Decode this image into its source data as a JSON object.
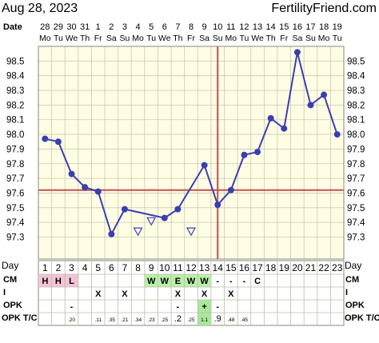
{
  "header": {
    "date": "Aug 28, 2023",
    "brand": "FertilityFriend.com"
  },
  "colors": {
    "background": "#fffde4",
    "grid": "#c8c8b4",
    "line": "#3a3fb0",
    "coverline": "#c0504d",
    "ovulation_line": "#c0504d",
    "cm_pink": "#f2c4d6",
    "cm_green": "#b9f0a8",
    "opk_green": "#a8e89a"
  },
  "chart_data": {
    "type": "line",
    "title": "",
    "xlabel": "Day",
    "ylabel": "",
    "ylim": [
      97.15,
      98.6
    ],
    "y_ticks": [
      "98.5",
      "98.4",
      "98.3",
      "98.2",
      "98.1",
      "98.0",
      "97.9",
      "97.8",
      "97.7",
      "97.6",
      "97.5",
      "97.4",
      "97.3"
    ],
    "y_tick_values": [
      98.5,
      98.4,
      98.3,
      98.2,
      98.1,
      98.0,
      97.9,
      97.8,
      97.7,
      97.6,
      97.5,
      97.4,
      97.3
    ],
    "date_label": "Date",
    "dates": [
      "28",
      "29",
      "30",
      "31",
      "1",
      "2",
      "3",
      "4",
      "5",
      "6",
      "7",
      "8",
      "9",
      "10",
      "11",
      "12",
      "13",
      "14",
      "15",
      "16",
      "17",
      "18",
      "19"
    ],
    "weekdays": [
      "Mo",
      "Tu",
      "We",
      "Th",
      "Fr",
      "Sa",
      "Su",
      "Mo",
      "Tu",
      "We",
      "Th",
      "Fr",
      "Sa",
      "Su",
      "Mo",
      "Tu",
      "We",
      "Th",
      "Fr",
      "Sa",
      "Su",
      "Mo",
      "Tu"
    ],
    "days": [
      "1",
      "2",
      "3",
      "4",
      "5",
      "6",
      "7",
      "8",
      "9",
      "10",
      "11",
      "12",
      "13",
      "14",
      "15",
      "16",
      "17",
      "18",
      "19",
      "20",
      "21",
      "22",
      "23"
    ],
    "temps": [
      97.97,
      97.95,
      97.73,
      97.64,
      97.61,
      97.32,
      97.49,
      null,
      null,
      97.43,
      97.49,
      null,
      97.79,
      97.52,
      97.62,
      97.86,
      97.88,
      98.11,
      98.04,
      98.56,
      98.2,
      98.27,
      98.0
    ],
    "discarded": [
      {
        "day": 8,
        "value": 97.34
      },
      {
        "day": 9,
        "value": 97.41
      },
      {
        "day": 12,
        "value": 97.34
      }
    ],
    "coverline": 97.62,
    "ovulation_day": 14,
    "rows": {
      "cm_label": "CM",
      "intercourse_label": "I",
      "opk_label": "OPK",
      "opktc_label": "OPK T/C",
      "cm": [
        "H",
        "H",
        "L",
        "",
        "",
        "",
        "",
        "",
        "W",
        "W",
        "E",
        "W",
        "W",
        "-",
        "-",
        "-",
        "C",
        "",
        "",
        "",
        "",
        "",
        ""
      ],
      "intercourse": [
        "",
        "",
        "",
        "",
        "X",
        "",
        "X",
        "",
        "",
        "",
        "X",
        "",
        "X",
        "",
        "X",
        "",
        "",
        "",
        "",
        "",
        "",
        "",
        ""
      ],
      "opk": [
        "",
        "",
        "-",
        "",
        "",
        "",
        "",
        "",
        "",
        "",
        "-",
        "",
        "+",
        "-",
        "",
        "",
        "",
        "",
        "",
        "",
        "",
        "",
        ""
      ],
      "opktc": [
        "",
        "",
        ".20",
        "",
        ".11",
        ".35",
        ".21",
        ".34",
        ".23",
        ".25",
        ".2",
        ".25",
        "1.1",
        ".9",
        ".48",
        ".45",
        "",
        "",
        "",
        "",
        "",
        "",
        ""
      ]
    }
  }
}
